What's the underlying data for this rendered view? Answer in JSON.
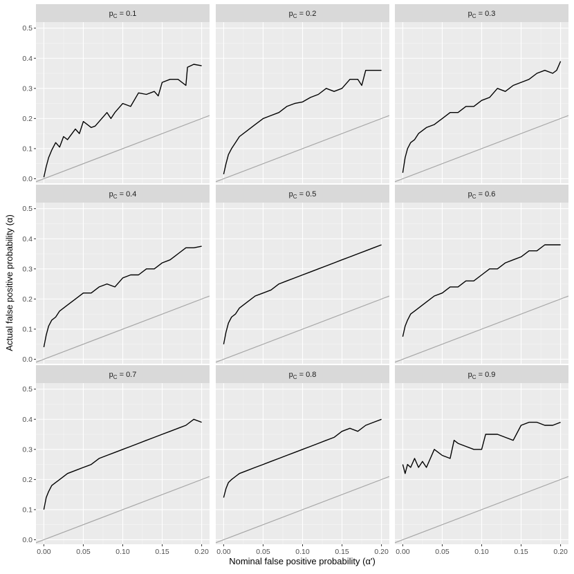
{
  "chart_data": {
    "type": "line",
    "xlabel": "Nominal false positive probability (α')",
    "ylabel": "Actual false positive probability (α)",
    "xlim": [
      -0.01,
      0.21
    ],
    "ylim": [
      -0.015,
      0.52
    ],
    "x_ticks": [
      0.0,
      0.05,
      0.1,
      0.15,
      0.2
    ],
    "x_tick_labels": [
      "0.00",
      "0.05",
      "0.10",
      "0.15",
      "0.20"
    ],
    "y_ticks": [
      0.0,
      0.1,
      0.2,
      0.3,
      0.4,
      0.5
    ],
    "y_tick_labels": [
      "0.0",
      "0.1",
      "0.2",
      "0.3",
      "0.4",
      "0.5"
    ],
    "grid": true,
    "reference_line": {
      "description": "y = x",
      "x": [
        -0.01,
        0.21
      ],
      "y": [
        -0.01,
        0.21
      ],
      "color": "#a6a6a6"
    },
    "panels": [
      {
        "strip": "p_C = 0.1",
        "strip_sym": "p",
        "strip_sub": "C",
        "strip_val": "= 0.1",
        "series": [
          {
            "x": [
              0.0,
              0.003,
              0.006,
              0.01,
              0.015,
              0.02,
              0.025,
              0.03,
              0.04,
              0.045,
              0.05,
              0.06,
              0.065,
              0.08,
              0.085,
              0.09,
              0.1,
              0.11,
              0.12,
              0.13,
              0.14,
              0.145,
              0.15,
              0.16,
              0.17,
              0.18,
              0.182,
              0.19,
              0.2
            ],
            "y": [
              0.005,
              0.04,
              0.07,
              0.095,
              0.12,
              0.105,
              0.14,
              0.13,
              0.165,
              0.15,
              0.19,
              0.17,
              0.175,
              0.22,
              0.2,
              0.22,
              0.25,
              0.24,
              0.285,
              0.28,
              0.29,
              0.275,
              0.32,
              0.33,
              0.33,
              0.31,
              0.37,
              0.38,
              0.375
            ]
          }
        ]
      },
      {
        "strip": "p_C = 0.2",
        "strip_sym": "p",
        "strip_sub": "C",
        "strip_val": "= 0.2",
        "series": [
          {
            "x": [
              0.0,
              0.003,
              0.006,
              0.01,
              0.015,
              0.02,
              0.03,
              0.04,
              0.05,
              0.06,
              0.07,
              0.08,
              0.09,
              0.1,
              0.11,
              0.12,
              0.13,
              0.14,
              0.15,
              0.16,
              0.17,
              0.175,
              0.18,
              0.19,
              0.2
            ],
            "y": [
              0.015,
              0.05,
              0.08,
              0.1,
              0.12,
              0.14,
              0.16,
              0.18,
              0.2,
              0.21,
              0.22,
              0.24,
              0.25,
              0.255,
              0.27,
              0.28,
              0.3,
              0.29,
              0.3,
              0.33,
              0.33,
              0.31,
              0.36,
              0.36,
              0.36
            ]
          }
        ]
      },
      {
        "strip": "p_C = 0.3",
        "strip_sym": "p",
        "strip_sub": "C",
        "strip_val": "= 0.3",
        "series": [
          {
            "x": [
              0.0,
              0.003,
              0.006,
              0.01,
              0.015,
              0.02,
              0.03,
              0.04,
              0.05,
              0.06,
              0.07,
              0.08,
              0.09,
              0.1,
              0.11,
              0.12,
              0.13,
              0.14,
              0.15,
              0.16,
              0.17,
              0.18,
              0.19,
              0.195,
              0.2
            ],
            "y": [
              0.02,
              0.07,
              0.1,
              0.12,
              0.13,
              0.15,
              0.17,
              0.18,
              0.2,
              0.22,
              0.22,
              0.24,
              0.24,
              0.26,
              0.27,
              0.3,
              0.29,
              0.31,
              0.32,
              0.33,
              0.35,
              0.36,
              0.35,
              0.36,
              0.39
            ]
          }
        ]
      },
      {
        "strip": "p_C = 0.4",
        "strip_sym": "p",
        "strip_sub": "C",
        "strip_val": "= 0.4",
        "series": [
          {
            "x": [
              0.0,
              0.003,
              0.006,
              0.01,
              0.015,
              0.02,
              0.03,
              0.04,
              0.05,
              0.06,
              0.07,
              0.08,
              0.09,
              0.1,
              0.11,
              0.12,
              0.13,
              0.14,
              0.15,
              0.16,
              0.17,
              0.18,
              0.19,
              0.2
            ],
            "y": [
              0.04,
              0.08,
              0.11,
              0.13,
              0.14,
              0.16,
              0.18,
              0.2,
              0.22,
              0.22,
              0.24,
              0.25,
              0.24,
              0.27,
              0.28,
              0.28,
              0.3,
              0.3,
              0.32,
              0.33,
              0.35,
              0.37,
              0.37,
              0.375
            ]
          }
        ]
      },
      {
        "strip": "p_C = 0.5",
        "strip_sym": "p",
        "strip_sub": "C",
        "strip_val": "= 0.5",
        "series": [
          {
            "x": [
              0.0,
              0.003,
              0.006,
              0.01,
              0.015,
              0.02,
              0.03,
              0.04,
              0.05,
              0.06,
              0.07,
              0.08,
              0.09,
              0.1,
              0.11,
              0.12,
              0.13,
              0.14,
              0.15,
              0.16,
              0.17,
              0.18,
              0.19,
              0.2
            ],
            "y": [
              0.05,
              0.09,
              0.12,
              0.14,
              0.15,
              0.17,
              0.19,
              0.21,
              0.22,
              0.23,
              0.25,
              0.26,
              0.27,
              0.28,
              0.29,
              0.3,
              0.31,
              0.32,
              0.33,
              0.34,
              0.35,
              0.36,
              0.37,
              0.38
            ]
          }
        ]
      },
      {
        "strip": "p_C = 0.6",
        "strip_sym": "p",
        "strip_sub": "C",
        "strip_val": "= 0.6",
        "series": [
          {
            "x": [
              0.0,
              0.003,
              0.006,
              0.01,
              0.015,
              0.02,
              0.03,
              0.04,
              0.05,
              0.06,
              0.07,
              0.08,
              0.09,
              0.1,
              0.11,
              0.12,
              0.13,
              0.14,
              0.15,
              0.16,
              0.17,
              0.18,
              0.19,
              0.2
            ],
            "y": [
              0.075,
              0.11,
              0.13,
              0.15,
              0.16,
              0.17,
              0.19,
              0.21,
              0.22,
              0.24,
              0.24,
              0.26,
              0.26,
              0.28,
              0.3,
              0.3,
              0.32,
              0.33,
              0.34,
              0.36,
              0.36,
              0.38,
              0.38,
              0.38
            ]
          }
        ]
      },
      {
        "strip": "p_C = 0.7",
        "strip_sym": "p",
        "strip_sub": "C",
        "strip_val": "= 0.7",
        "series": [
          {
            "x": [
              0.0,
              0.003,
              0.006,
              0.01,
              0.015,
              0.02,
              0.03,
              0.04,
              0.05,
              0.06,
              0.07,
              0.08,
              0.09,
              0.1,
              0.11,
              0.12,
              0.13,
              0.14,
              0.15,
              0.16,
              0.17,
              0.18,
              0.19,
              0.2
            ],
            "y": [
              0.1,
              0.14,
              0.16,
              0.18,
              0.19,
              0.2,
              0.22,
              0.23,
              0.24,
              0.25,
              0.27,
              0.28,
              0.29,
              0.3,
              0.31,
              0.32,
              0.33,
              0.34,
              0.35,
              0.36,
              0.37,
              0.38,
              0.4,
              0.39
            ]
          }
        ]
      },
      {
        "strip": "p_C = 0.8",
        "strip_sym": "p",
        "strip_sub": "C",
        "strip_val": "= 0.8",
        "series": [
          {
            "x": [
              0.0,
              0.003,
              0.006,
              0.01,
              0.015,
              0.02,
              0.03,
              0.04,
              0.05,
              0.06,
              0.07,
              0.08,
              0.09,
              0.1,
              0.11,
              0.12,
              0.13,
              0.14,
              0.15,
              0.16,
              0.17,
              0.18,
              0.19,
              0.2
            ],
            "y": [
              0.14,
              0.17,
              0.19,
              0.2,
              0.21,
              0.22,
              0.23,
              0.24,
              0.25,
              0.26,
              0.27,
              0.28,
              0.29,
              0.3,
              0.31,
              0.32,
              0.33,
              0.34,
              0.36,
              0.37,
              0.36,
              0.38,
              0.39,
              0.4
            ]
          }
        ]
      },
      {
        "strip": "p_C = 0.9",
        "strip_sym": "p",
        "strip_sub": "C",
        "strip_val": "= 0.9",
        "series": [
          {
            "x": [
              0.0,
              0.003,
              0.006,
              0.01,
              0.015,
              0.02,
              0.025,
              0.03,
              0.035,
              0.04,
              0.05,
              0.06,
              0.065,
              0.07,
              0.08,
              0.09,
              0.1,
              0.105,
              0.11,
              0.12,
              0.13,
              0.14,
              0.15,
              0.16,
              0.17,
              0.18,
              0.19,
              0.2
            ],
            "y": [
              0.25,
              0.22,
              0.25,
              0.24,
              0.27,
              0.24,
              0.26,
              0.24,
              0.27,
              0.3,
              0.28,
              0.27,
              0.33,
              0.32,
              0.31,
              0.3,
              0.3,
              0.35,
              0.35,
              0.35,
              0.34,
              0.33,
              0.38,
              0.39,
              0.39,
              0.38,
              0.38,
              0.39
            ]
          }
        ]
      }
    ]
  }
}
